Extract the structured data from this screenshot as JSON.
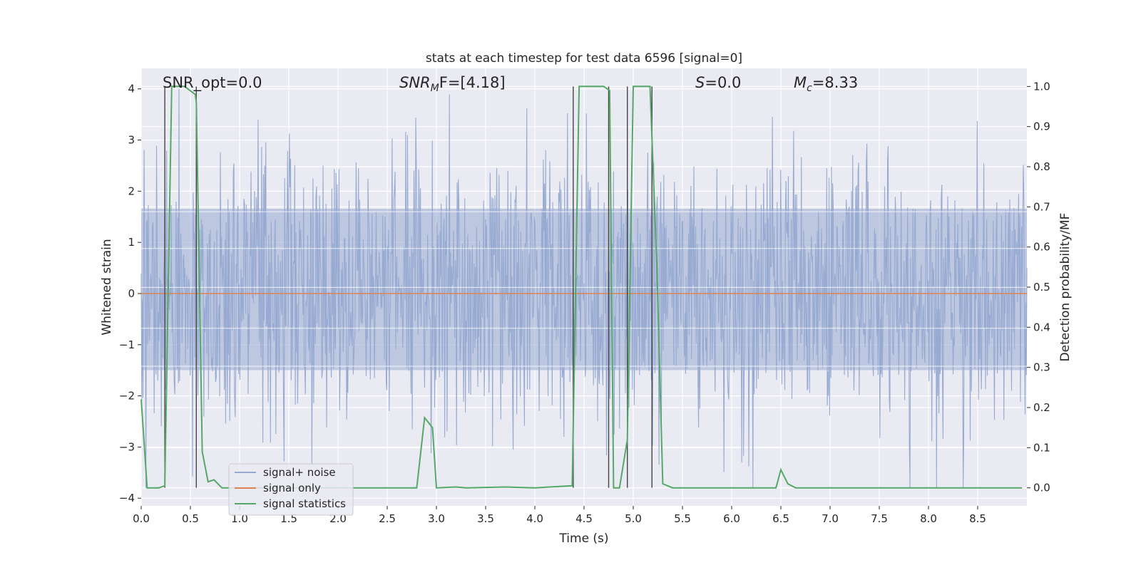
{
  "chart_data": {
    "type": "line",
    "title": "stats at each timestep for test data 6596 [signal=0]",
    "xlabel": "Time (s)",
    "ylabel": "Whitened strain",
    "y2label": "Detection probability/MF",
    "xlim": [
      0,
      9.0
    ],
    "ylim": [
      -4.15,
      4.4
    ],
    "y2lim": [
      -0.045,
      1.045
    ],
    "xticks": [
      0.0,
      0.5,
      1.0,
      1.5,
      2.0,
      2.5,
      3.0,
      3.5,
      4.0,
      4.5,
      5.0,
      5.5,
      6.0,
      6.5,
      7.0,
      7.5,
      8.0,
      8.5
    ],
    "xtick_labels": [
      "0.0",
      "0.5",
      "1.0",
      "1.5",
      "2.0",
      "2.5",
      "3.0",
      "3.5",
      "4.0",
      "4.5",
      "5.0",
      "5.5",
      "6.0",
      "6.5",
      "7.0",
      "7.5",
      "8.0",
      "8.5"
    ],
    "yticks": [
      4,
      3,
      2,
      1,
      0,
      -1,
      -2,
      -3,
      -4
    ],
    "ytick_labels": [
      "4",
      "3",
      "2",
      "1",
      "0",
      "−1",
      "−2",
      "−3",
      "−4"
    ],
    "y2ticks": [
      1.0,
      0.9,
      0.8,
      0.7,
      0.6,
      0.5,
      0.4,
      0.3,
      0.2,
      0.1,
      0.0
    ],
    "y2tick_labels": [
      "1.0",
      "0.9",
      "0.8",
      "0.7",
      "0.6",
      "0.5",
      "0.4",
      "0.3",
      "0.2",
      "0.1",
      "0.0"
    ],
    "annotations": {
      "snr_opt": "SNR_opt=0.0",
      "snr_mf": "SNR",
      "snr_mf_sub": "M",
      "snr_mf_tail": "F=[4.18]",
      "s_var": "S",
      "s_tail": "=0.0",
      "mc_var": "M",
      "mc_sub": "c",
      "mc_tail": "=8.33"
    },
    "legend": {
      "placement": "lower-left",
      "entries": [
        "signal+ noise",
        "signal only",
        "signal statistics"
      ]
    },
    "colors": {
      "noise": "#97aad1",
      "signal": "#dd8452",
      "stats": "#55a868",
      "vlines": "#444444",
      "plot_bg": "#eaeaf2",
      "grid": "#ffffff"
    },
    "noise_envelope": {
      "typical_max": 2.3,
      "typical_min": -2.2,
      "peak_max": 4.0,
      "peak_min": -3.8
    },
    "vertical_markers": [
      0.24,
      0.56,
      4.39,
      4.75,
      4.94,
      5.19
    ],
    "series": [
      {
        "name": "signal only",
        "x": [
          0,
          9.0
        ],
        "y": [
          0,
          0
        ]
      },
      {
        "name": "signal statistics",
        "axis": "right",
        "x": [
          0.0,
          0.06,
          0.18,
          0.24,
          0.31,
          0.36,
          0.44,
          0.55,
          0.56,
          0.62,
          0.68,
          0.74,
          0.82,
          0.9,
          1.0,
          2.8,
          2.88,
          2.96,
          3.0,
          3.2,
          3.3,
          3.7,
          4.0,
          4.38,
          4.45,
          4.56,
          4.7,
          4.76,
          4.8,
          4.86,
          4.94,
          5.0,
          5.05,
          5.17,
          5.24,
          5.3,
          5.4,
          5.5,
          6.0,
          6.45,
          6.5,
          6.57,
          6.65,
          7.0,
          8.95
        ],
        "y": [
          0.22,
          0.0,
          0.0,
          0.005,
          1.0,
          1.0,
          1.0,
          0.98,
          0.96,
          0.09,
          0.015,
          0.02,
          0.0,
          0.0,
          0.0,
          0.0,
          0.175,
          0.15,
          0.0,
          0.002,
          0.0,
          0.002,
          0.0,
          0.005,
          1.0,
          1.0,
          1.0,
          0.99,
          0.0,
          0.0,
          0.12,
          1.0,
          1.0,
          1.0,
          0.55,
          0.01,
          0.0,
          0.0,
          0.0,
          0.0,
          0.045,
          0.01,
          0.0,
          0.0,
          0.0
        ]
      }
    ]
  }
}
